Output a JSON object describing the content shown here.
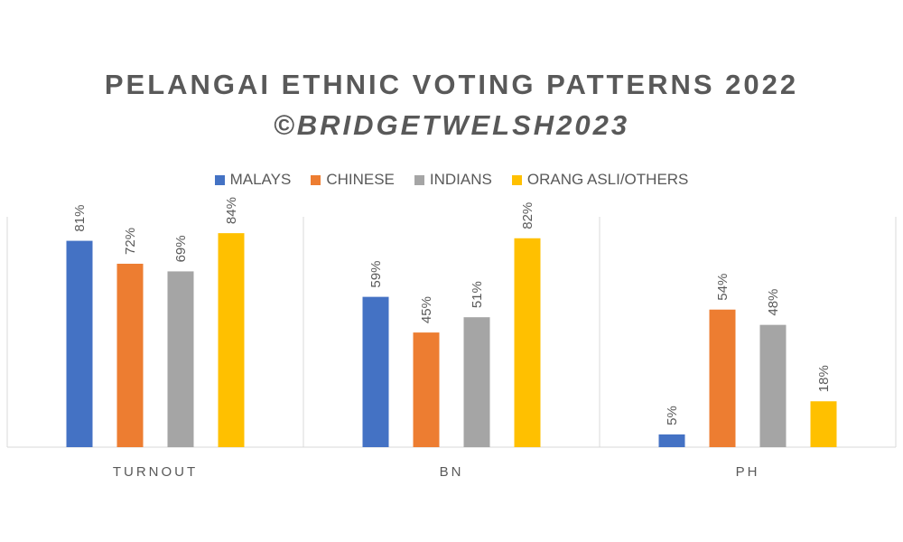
{
  "chart_data": {
    "type": "bar",
    "title": "PELANGAI ETHNIC VOTING PATTERNS 2022",
    "subtitle": "©BRIDGETWELSH2023",
    "categories": [
      "TURNOUT",
      "BN",
      "PH"
    ],
    "series": [
      {
        "name": "MALAYS",
        "color": "#4472C4",
        "values": [
          81,
          59,
          5
        ]
      },
      {
        "name": "CHINESE",
        "color": "#ED7D31",
        "values": [
          72,
          45,
          54
        ]
      },
      {
        "name": "INDIANS",
        "color": "#A5A5A5",
        "values": [
          69,
          51,
          48
        ]
      },
      {
        "name": "ORANG ASLI/OTHERS",
        "color": "#FFC000",
        "values": [
          84,
          82,
          18
        ]
      }
    ],
    "value_suffix": "%",
    "ylim": [
      0,
      100
    ],
    "grid": false,
    "legend_position": "top"
  }
}
